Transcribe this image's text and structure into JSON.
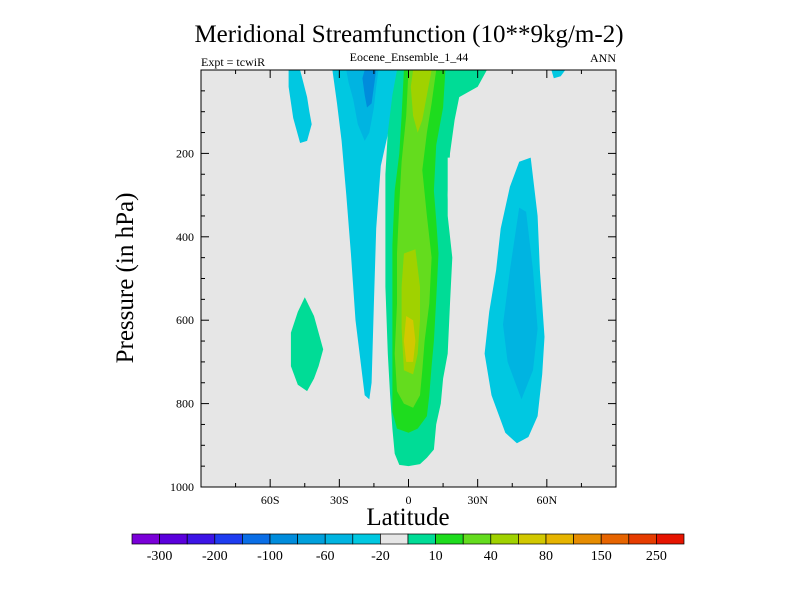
{
  "chart_data": {
    "type": "heatmap",
    "title": "Meridional Streamfunction (10**9kg/m-2)",
    "subtitle_left": "Expt = tcwiR",
    "subtitle_center": "Eocene_Ensemble_1_44",
    "subtitle_right": "ANN",
    "xlabel": "Latitude",
    "ylabel": "Pressure (in hPa)",
    "xlim": [
      -90,
      90
    ],
    "ylim": [
      1000,
      0
    ],
    "y_reversed": true,
    "x_ticks": [
      {
        "value": -60,
        "label": "60S"
      },
      {
        "value": -30,
        "label": "30S"
      },
      {
        "value": 0,
        "label": "0"
      },
      {
        "value": 30,
        "label": "30N"
      },
      {
        "value": 60,
        "label": "60N"
      }
    ],
    "y_ticks": [
      {
        "value": 200,
        "label": "200"
      },
      {
        "value": 400,
        "label": "400"
      },
      {
        "value": 600,
        "label": "600"
      },
      {
        "value": 800,
        "label": "800"
      },
      {
        "value": 1000,
        "label": "1000"
      }
    ],
    "background_color": "#e6e6e6",
    "colorbar": {
      "colors": [
        "#7a00d8",
        "#5a00dc",
        "#3c14e6",
        "#1e3cf0",
        "#0a6ee6",
        "#008cdc",
        "#00a0dc",
        "#00b4e1",
        "#00c8e1",
        "#e6e6e6",
        "#00dc96",
        "#1edc1e",
        "#64dc1e",
        "#a0d200",
        "#d2c800",
        "#e6b400",
        "#e68c00",
        "#e66400",
        "#e63c00",
        "#e61400"
      ],
      "labels": [
        {
          "after_box": 1,
          "label": "-300"
        },
        {
          "after_box": 3,
          "label": "-200"
        },
        {
          "after_box": 5,
          "label": "-100"
        },
        {
          "after_box": 7,
          "label": "-60"
        },
        {
          "after_box": 9,
          "label": "-20"
        },
        {
          "after_box": 11,
          "label": "10"
        },
        {
          "after_box": 13,
          "label": "40"
        },
        {
          "after_box": 15,
          "label": "80"
        },
        {
          "after_box": 17,
          "label": "150"
        },
        {
          "after_box": 19,
          "label": "250"
        }
      ]
    },
    "contours": [
      {
        "color": "#00c8e1",
        "points": [
          [
            -52,
            0
          ],
          [
            -47,
            0
          ],
          [
            -44,
            65
          ],
          [
            -43,
            100
          ],
          [
            -42,
            130
          ],
          [
            -44,
            170
          ],
          [
            -47,
            175
          ],
          [
            -50,
            115
          ],
          [
            -52,
            40
          ]
        ]
      },
      {
        "color": "#00c8e1",
        "points": [
          [
            -33,
            0
          ],
          [
            -3,
            0
          ],
          [
            -6,
            60
          ],
          [
            -8,
            130
          ],
          [
            -12,
            230
          ],
          [
            -14,
            380
          ],
          [
            -15,
            560
          ],
          [
            -16,
            750
          ],
          [
            -17,
            790
          ],
          [
            -19,
            780
          ],
          [
            -23,
            600
          ],
          [
            -25,
            440
          ],
          [
            -27,
            300
          ],
          [
            -29,
            170
          ],
          [
            -31,
            80
          ]
        ]
      },
      {
        "color": "#00b4e1",
        "points": [
          [
            -27,
            0
          ],
          [
            -13,
            0
          ],
          [
            -14,
            40
          ],
          [
            -15,
            90
          ],
          [
            -17,
            150
          ],
          [
            -19,
            170
          ],
          [
            -22,
            130
          ],
          [
            -24,
            70
          ],
          [
            -26,
            30
          ]
        ]
      },
      {
        "color": "#008cdc",
        "points": [
          [
            -19,
            0
          ],
          [
            -14,
            0
          ],
          [
            -15,
            40
          ],
          [
            -16,
            80
          ],
          [
            -18,
            90
          ],
          [
            -19,
            60
          ],
          [
            -20,
            20
          ]
        ]
      },
      {
        "color": "#00dc96",
        "points": [
          [
            -5,
            0
          ],
          [
            34,
            0
          ],
          [
            30,
            40
          ],
          [
            22,
            65
          ],
          [
            20,
            120
          ],
          [
            18,
            200
          ],
          [
            17,
            300
          ],
          [
            17,
            350
          ],
          [
            19,
            450
          ],
          [
            18,
            560
          ],
          [
            17,
            680
          ],
          [
            15,
            740
          ],
          [
            14,
            800
          ],
          [
            12,
            850
          ],
          [
            11,
            910
          ],
          [
            8,
            930
          ],
          [
            5,
            945
          ],
          [
            0,
            950
          ],
          [
            -4,
            947
          ],
          [
            -6,
            920
          ],
          [
            -7,
            860
          ],
          [
            -8,
            780
          ],
          [
            -9,
            680
          ],
          [
            -10,
            520
          ],
          [
            -10,
            370
          ],
          [
            -10,
            250
          ],
          [
            -9,
            150
          ],
          [
            -7,
            60
          ]
        ]
      },
      {
        "color": "#1edc1e",
        "points": [
          [
            -2,
            0
          ],
          [
            16,
            0
          ],
          [
            15,
            90
          ],
          [
            12,
            180
          ],
          [
            11,
            290
          ],
          [
            12,
            360
          ],
          [
            13,
            440
          ],
          [
            12,
            550
          ],
          [
            11,
            650
          ],
          [
            10,
            710
          ],
          [
            9,
            780
          ],
          [
            8,
            830
          ],
          [
            4,
            860
          ],
          [
            0,
            870
          ],
          [
            -5,
            860
          ],
          [
            -7,
            820
          ],
          [
            -7,
            700
          ],
          [
            -7,
            560
          ],
          [
            -7,
            420
          ],
          [
            -6,
            290
          ],
          [
            -4,
            200
          ],
          [
            -3,
            110
          ]
        ]
      },
      {
        "color": "#64dc1e",
        "points": [
          [
            0,
            0
          ],
          [
            12,
            0
          ],
          [
            10,
            80
          ],
          [
            8,
            150
          ],
          [
            6,
            240
          ],
          [
            8,
            350
          ],
          [
            10,
            450
          ],
          [
            9,
            560
          ],
          [
            7,
            650
          ],
          [
            6,
            720
          ],
          [
            5,
            780
          ],
          [
            2,
            810
          ],
          [
            -2,
            800
          ],
          [
            -5,
            770
          ],
          [
            -6,
            680
          ],
          [
            -5,
            560
          ],
          [
            -5,
            440
          ],
          [
            -4,
            320
          ],
          [
            -3,
            220
          ],
          [
            -1,
            110
          ]
        ]
      },
      {
        "color": "#a0d200",
        "points": [
          [
            2,
            0
          ],
          [
            10,
            0
          ],
          [
            8,
            60
          ],
          [
            6,
            120
          ],
          [
            4,
            150
          ],
          [
            2,
            110
          ],
          [
            1,
            40
          ]
        ]
      },
      {
        "color": "#a0d200",
        "points": [
          [
            -2,
            440
          ],
          [
            3,
            430
          ],
          [
            5,
            520
          ],
          [
            5,
            600
          ],
          [
            4,
            680
          ],
          [
            2,
            730
          ],
          [
            -2,
            720
          ],
          [
            -3,
            620
          ],
          [
            -3,
            520
          ]
        ]
      },
      {
        "color": "#d2c800",
        "points": [
          [
            -1,
            590
          ],
          [
            2,
            600
          ],
          [
            3,
            650
          ],
          [
            2,
            700
          ],
          [
            -1,
            700
          ],
          [
            -2,
            650
          ]
        ]
      },
      {
        "color": "#00c8e1",
        "points": [
          [
            48,
            220
          ],
          [
            53,
            210
          ],
          [
            56,
            350
          ],
          [
            57,
            480
          ],
          [
            59,
            640
          ],
          [
            58,
            730
          ],
          [
            56,
            830
          ],
          [
            52,
            880
          ],
          [
            47,
            895
          ],
          [
            42,
            870
          ],
          [
            36,
            780
          ],
          [
            33,
            680
          ],
          [
            35,
            580
          ],
          [
            38,
            480
          ],
          [
            40,
            380
          ],
          [
            44,
            280
          ]
        ]
      },
      {
        "color": "#00b4e1",
        "points": [
          [
            48,
            330
          ],
          [
            51,
            340
          ],
          [
            54,
            480
          ],
          [
            56,
            620
          ],
          [
            54,
            720
          ],
          [
            49,
            790
          ],
          [
            43,
            700
          ],
          [
            41,
            610
          ],
          [
            44,
            480
          ]
        ]
      },
      {
        "color": "#00c8e1",
        "points": [
          [
            62,
            0
          ],
          [
            68,
            0
          ],
          [
            66,
            15
          ],
          [
            63,
            20
          ]
        ]
      },
      {
        "color": "#e6e6e6",
        "points": [
          [
            17,
            210
          ],
          [
            19,
            210
          ],
          [
            20,
            300
          ],
          [
            19,
            380
          ],
          [
            18,
            390
          ],
          [
            17,
            300
          ]
        ]
      },
      {
        "color": "#00dc96",
        "points": [
          [
            -45,
            545
          ],
          [
            -41,
            590
          ],
          [
            -37,
            670
          ],
          [
            -39,
            710
          ],
          [
            -41,
            740
          ],
          [
            -44,
            770
          ],
          [
            -48,
            755
          ],
          [
            -51,
            710
          ],
          [
            -51,
            630
          ],
          [
            -48,
            580
          ]
        ]
      }
    ]
  }
}
